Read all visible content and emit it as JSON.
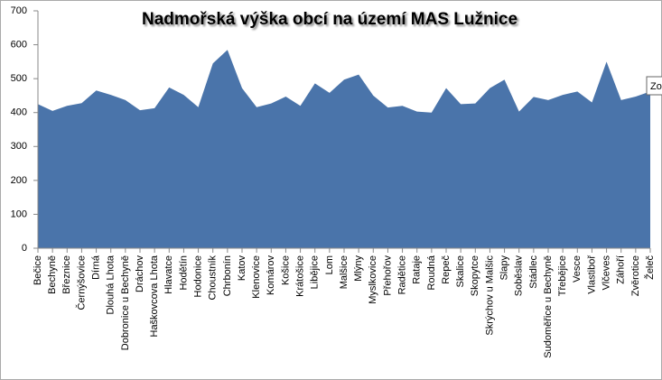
{
  "chart_data": {
    "type": "area",
    "title": "Nadmořská výška obcí na území MAS Lužnice",
    "categories": [
      "Bečice",
      "Bechyně",
      "Březnice",
      "Černýšovice",
      "Dírná",
      "Dlouhá Lhota",
      "Dobronice u Bechyně",
      "Dráchov",
      "Haškovcova Lhota",
      "Hlavatce",
      "Hodětín",
      "Hodonice",
      "Choustník",
      "Chrbonín",
      "Katov",
      "Klenovice",
      "Komárov",
      "Košice",
      "Krátošice",
      "Libějice",
      "Lom",
      "Malšice",
      "Mlýny",
      "Myslkovice",
      "Přehořov",
      "Radětice",
      "Rataje",
      "Roudná",
      "Repeč",
      "Skalice",
      "Skopytce",
      "Skrýchov u Malšic",
      "Slapy",
      "Soběslav",
      "Stádlec",
      "Sudoměřice u Bechyně",
      "Třebějice",
      "Vesce",
      "Vlastiboř",
      "Vlčeves",
      "Záhoří",
      "Zvěrotice",
      "Želeč"
    ],
    "values": [
      425,
      405,
      420,
      428,
      465,
      452,
      437,
      407,
      413,
      474,
      452,
      416,
      545,
      585,
      472,
      416,
      427,
      447,
      420,
      486,
      458,
      497,
      512,
      450,
      415,
      420,
      403,
      400,
      472,
      425,
      427,
      472,
      497,
      403,
      446,
      437,
      452,
      462,
      430,
      550,
      437,
      447,
      462
    ],
    "color": "#4a74aa",
    "ylim": [
      0,
      700
    ],
    "yticks": [
      0,
      100,
      200,
      300,
      400,
      500,
      600,
      700
    ],
    "tooltip": "Zo"
  }
}
